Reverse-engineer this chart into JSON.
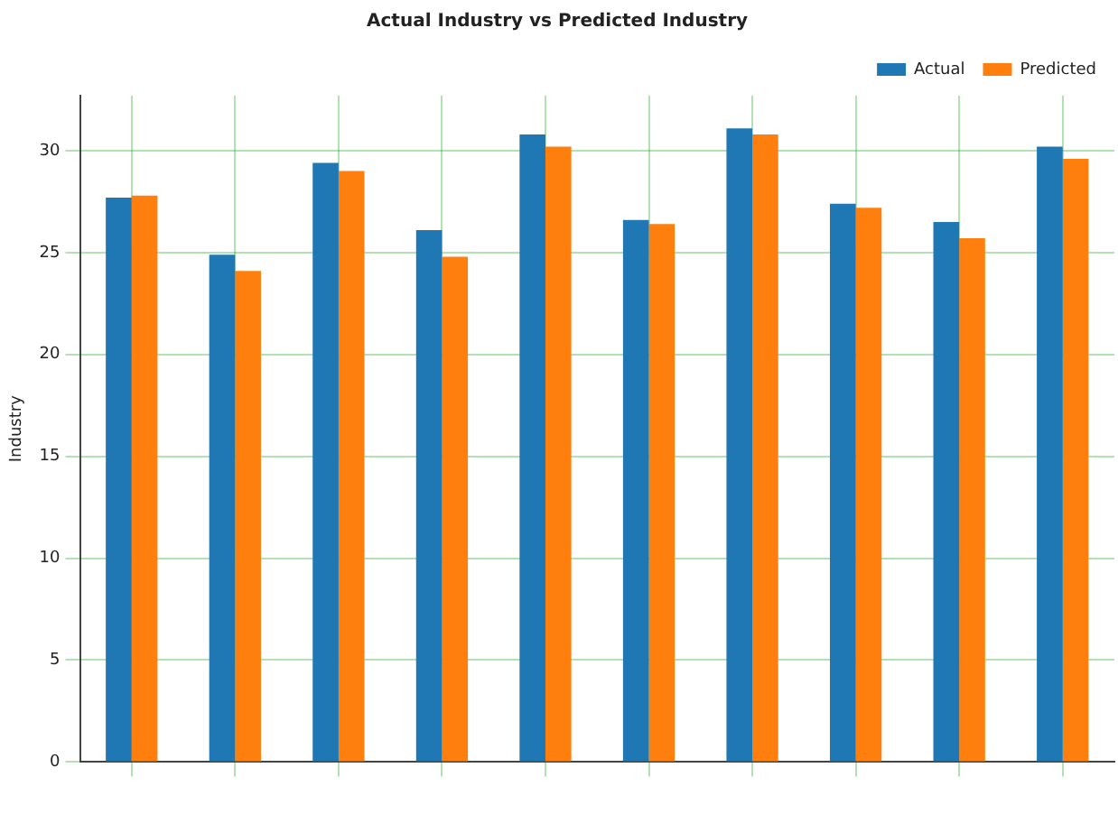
{
  "chart_data": {
    "type": "bar",
    "title": "Actual Industry vs Predicted Industry",
    "ylabel": "Industry",
    "categories": [
      null,
      null,
      null,
      null,
      null,
      null,
      null,
      null,
      null,
      null
    ],
    "series": [
      {
        "name": "Actual",
        "color": "#1f77b4",
        "values": [
          27.7,
          24.9,
          29.4,
          26.1,
          30.8,
          26.6,
          31.1,
          27.4,
          26.5,
          30.2
        ]
      },
      {
        "name": "Predicted",
        "color": "#ff7f0e",
        "values": [
          27.8,
          24.1,
          29.0,
          24.8,
          30.2,
          26.4,
          30.8,
          27.2,
          25.7,
          29.6
        ]
      }
    ],
    "ylim": [
      0,
      32.7
    ],
    "yticks": [
      0,
      5,
      10,
      15,
      20,
      25,
      30
    ],
    "grid": true,
    "legend": "top right"
  }
}
